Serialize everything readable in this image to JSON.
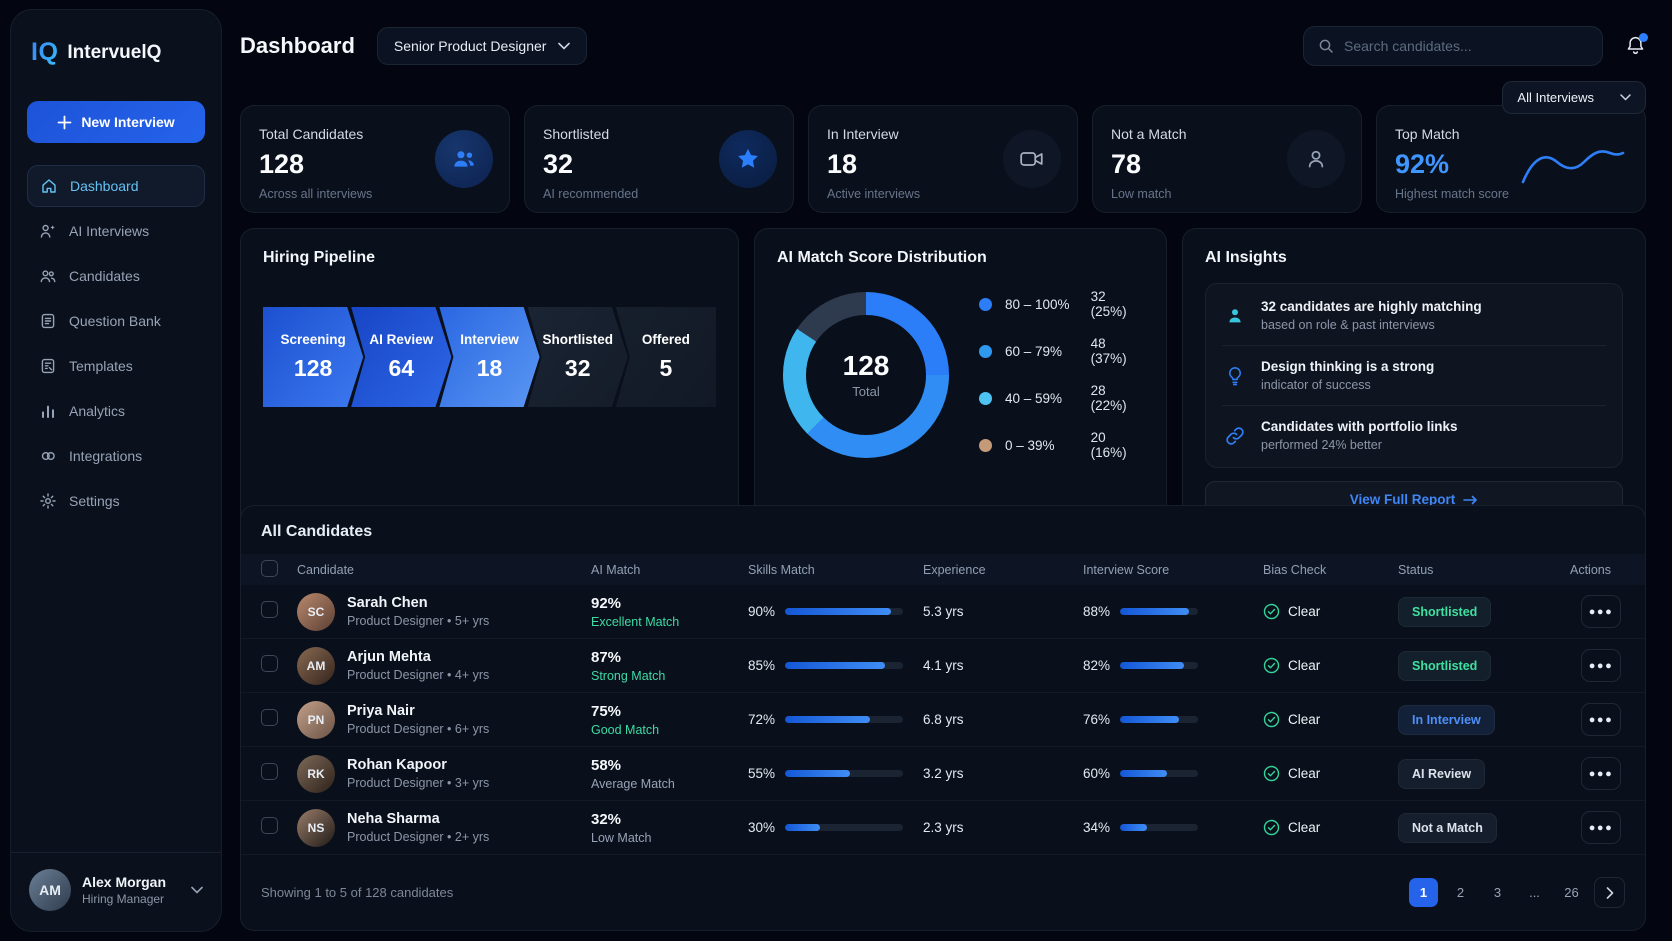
{
  "brand": {
    "logo": "IQ",
    "name": "IntervuelQ"
  },
  "sidebar": {
    "new_interview_label": "New Interview",
    "items": [
      {
        "label": "Dashboard",
        "active": true
      },
      {
        "label": "AI Interviews",
        "active": false
      },
      {
        "label": "Candidates",
        "active": false
      },
      {
        "label": "Question Bank",
        "active": false
      },
      {
        "label": "Templates",
        "active": false
      },
      {
        "label": "Analytics",
        "active": false
      },
      {
        "label": "Integrations",
        "active": false
      },
      {
        "label": "Settings",
        "active": false
      }
    ],
    "user": {
      "name": "Alex Morgan",
      "role": "Hiring Manager",
      "initials": "AM"
    }
  },
  "header": {
    "title": "Dashboard",
    "role_filter": "Senior Product Designer",
    "search_placeholder": "Search candidates...",
    "interviews_filter": "All Interviews"
  },
  "stats": [
    {
      "label": "Total Candidates",
      "value": "128",
      "sub": "Across all interviews",
      "icon": "users"
    },
    {
      "label": "Shortlisted",
      "value": "32",
      "sub": "AI recommended",
      "icon": "star"
    },
    {
      "label": "In Interview",
      "value": "18",
      "sub": "Active interviews",
      "icon": "video-camera"
    },
    {
      "label": "Not a Match",
      "value": "78",
      "sub": "Low match",
      "icon": "person"
    },
    {
      "label": "Top Match",
      "value": "92%",
      "sub": "Highest match score",
      "icon": "sparkline"
    }
  ],
  "pipeline": {
    "title": "Hiring Pipeline",
    "stages": [
      {
        "label": "Screening",
        "value": "128"
      },
      {
        "label": "AI Review",
        "value": "64"
      },
      {
        "label": "Interview",
        "value": "18"
      },
      {
        "label": "Shortlisted",
        "value": "32"
      },
      {
        "label": "Offered",
        "value": "5"
      }
    ]
  },
  "chart_data": {
    "type": "pie",
    "title": "AI Match Score Distribution",
    "center_value": "128",
    "center_label": "Total",
    "categories": [
      "80 – 100%",
      "60 – 79%",
      "40 – 59%",
      "0 – 39%"
    ],
    "values": [
      32,
      48,
      28,
      20
    ],
    "labels": [
      "32 (25%)",
      "48 (37%)",
      "28 (22%)",
      "20 (16%)"
    ],
    "segment_colors": [
      "#2b7ef8",
      "#2f8df3",
      "#3fb7ee",
      "#2e3a4d"
    ],
    "legend_colors": [
      "#2b7ef8",
      "#2f99f0",
      "#4cc3f2",
      "#c49a78"
    ],
    "legend_position": "right"
  },
  "insights": {
    "title": "AI Insights",
    "items": [
      {
        "title": "32 candidates are highly matching",
        "sub": "based on role & past interviews",
        "icon": "person-check"
      },
      {
        "title": "Design thinking is a strong",
        "sub": "indicator of success",
        "icon": "lightbulb"
      },
      {
        "title": "Candidates with portfolio links",
        "sub": "performed 24% better",
        "icon": "link"
      }
    ],
    "cta": "View Full Report"
  },
  "table": {
    "title": "All Candidates",
    "columns": [
      "Candidate",
      "AI Match",
      "Skills Match",
      "Experience",
      "Interview Score",
      "Bias Check",
      "Status",
      "Actions"
    ],
    "rows": [
      {
        "name": "Sarah Chen",
        "meta": "Product Designer • 5+ yrs",
        "initials": "SC",
        "ai_match": "92%",
        "match_quality": "Excellent Match",
        "match_tone": "green",
        "skills": "90%",
        "skills_pct": 90,
        "experience": "5.3 yrs",
        "interview": "88%",
        "interview_pct": 88,
        "bias": "Clear",
        "status": {
          "label": "Shortlisted",
          "tone": "green"
        }
      },
      {
        "name": "Arjun Mehta",
        "meta": "Product Designer • 4+ yrs",
        "initials": "AM",
        "ai_match": "87%",
        "match_quality": "Strong Match",
        "match_tone": "green",
        "skills": "85%",
        "skills_pct": 85,
        "experience": "4.1 yrs",
        "interview": "82%",
        "interview_pct": 82,
        "bias": "Clear",
        "status": {
          "label": "Shortlisted",
          "tone": "green"
        }
      },
      {
        "name": "Priya Nair",
        "meta": "Product Designer • 6+ yrs",
        "initials": "PN",
        "ai_match": "75%",
        "match_quality": "Good Match",
        "match_tone": "green",
        "skills": "72%",
        "skills_pct": 72,
        "experience": "6.8 yrs",
        "interview": "76%",
        "interview_pct": 76,
        "bias": "Clear",
        "status": {
          "label": "In Interview",
          "tone": "blue"
        }
      },
      {
        "name": "Rohan Kapoor",
        "meta": "Product Designer • 3+ yrs",
        "initials": "RK",
        "ai_match": "58%",
        "match_quality": "Average Match",
        "match_tone": "muted",
        "skills": "55%",
        "skills_pct": 55,
        "experience": "3.2 yrs",
        "interview": "60%",
        "interview_pct": 60,
        "bias": "Clear",
        "status": {
          "label": "AI Review",
          "tone": "neutral"
        }
      },
      {
        "name": "Neha Sharma",
        "meta": "Product Designer • 2+ yrs",
        "initials": "NS",
        "ai_match": "32%",
        "match_quality": "Low Match",
        "match_tone": "muted",
        "skills": "30%",
        "skills_pct": 30,
        "experience": "2.3 yrs",
        "interview": "34%",
        "interview_pct": 34,
        "bias": "Clear",
        "status": {
          "label": "Not a Match",
          "tone": "neutral"
        }
      }
    ],
    "footer": "Showing 1 to 5 of 128 candidates",
    "pages": [
      "1",
      "2",
      "3",
      "...",
      "26"
    ],
    "active_page": "1"
  }
}
